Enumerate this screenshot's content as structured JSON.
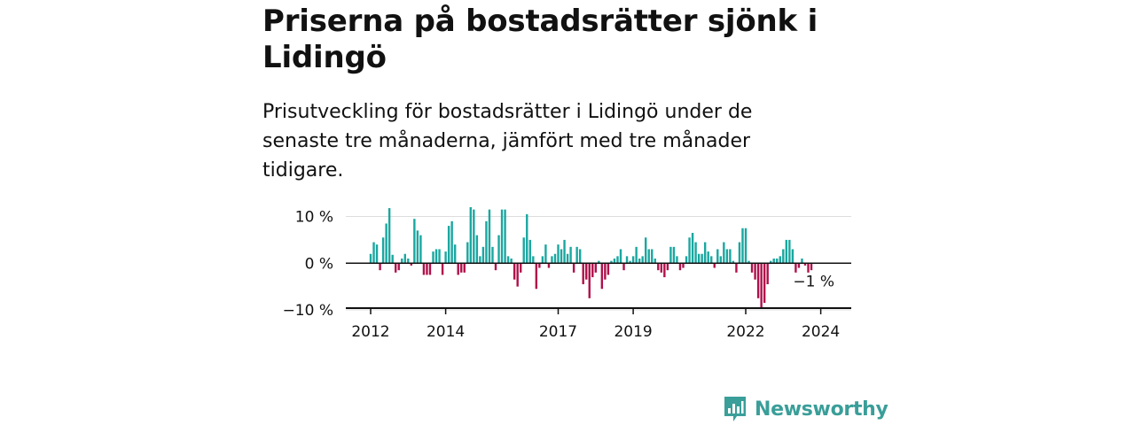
{
  "header": {
    "title": "Priserna på bostadsrätter sjönk i Lidingö",
    "subtitle": "Prisutveckling för bostadsrätter i Lidingö under de senaste tre månaderna, jämfört med tre månader tidigare."
  },
  "brand": {
    "name": "Newsworthy",
    "color": "#3a9e99",
    "icon": "bar-chart-icon"
  },
  "colors": {
    "positive": "#1aa7a0",
    "negative": "#b0104a",
    "grid": "#dddddd",
    "axis": "#111111"
  },
  "chart_data": {
    "type": "bar",
    "ylim": [
      -10,
      12
    ],
    "yticks": [
      {
        "value": 10,
        "label": "10 %"
      },
      {
        "value": 0,
        "label": "0 %"
      },
      {
        "value": -10,
        "label": "−10 %"
      }
    ],
    "xticks": [
      {
        "label": "2012",
        "x": 2012.0
      },
      {
        "label": "2014",
        "x": 2014.0
      },
      {
        "label": "2017",
        "x": 2017.0
      },
      {
        "label": "2019",
        "x": 2019.0
      },
      {
        "label": "2022",
        "x": 2022.0
      },
      {
        "label": "2024",
        "x": 2024.0
      }
    ],
    "x_start": "2012-01",
    "annotation": "−1 %",
    "values": [
      2.0,
      4.5,
      4.0,
      -1.5,
      5.5,
      8.5,
      11.8,
      1.8,
      -2.0,
      -1.5,
      1.0,
      2.0,
      1.0,
      -0.5,
      9.5,
      7.0,
      6.0,
      -2.5,
      -2.5,
      -2.5,
      2.5,
      3.0,
      3.0,
      -2.5,
      2.5,
      8.0,
      9.0,
      4.0,
      -2.5,
      -2.0,
      -2.0,
      4.5,
      12.0,
      11.5,
      6.0,
      1.5,
      3.5,
      9.0,
      11.5,
      3.5,
      -1.5,
      6.0,
      11.5,
      11.5,
      1.5,
      1.0,
      -3.5,
      -5.0,
      -2.0,
      5.5,
      10.5,
      5.0,
      1.5,
      -5.5,
      -1.0,
      1.5,
      4.0,
      -1.0,
      1.5,
      2.0,
      4.0,
      3.0,
      5.0,
      2.0,
      3.5,
      -2.0,
      3.5,
      3.0,
      -4.5,
      -3.5,
      -7.5,
      -3.0,
      -2.0,
      0.5,
      -5.5,
      -3.5,
      -2.5,
      0.5,
      1.0,
      1.5,
      3.0,
      -1.5,
      1.5,
      0.5,
      1.5,
      3.5,
      1.0,
      1.5,
      5.5,
      3.0,
      3.0,
      1.0,
      -1.5,
      -2.0,
      -3.0,
      -1.5,
      3.5,
      3.5,
      1.5,
      -1.5,
      -1.0,
      1.5,
      5.5,
      6.5,
      4.5,
      2.0,
      2.0,
      4.5,
      2.5,
      1.5,
      -1.0,
      3.0,
      1.5,
      4.5,
      3.0,
      3.0,
      0.5,
      -2.0,
      4.5,
      7.5,
      7.5,
      0.5,
      -2.0,
      -3.5,
      -7.5,
      -9.5,
      -8.5,
      -4.5,
      0.5,
      1.0,
      1.0,
      1.5,
      3.0,
      5.0,
      5.0,
      3.0,
      -2.0,
      -1.0,
      1.0,
      -0.5,
      -2.0,
      -1.5
    ]
  }
}
